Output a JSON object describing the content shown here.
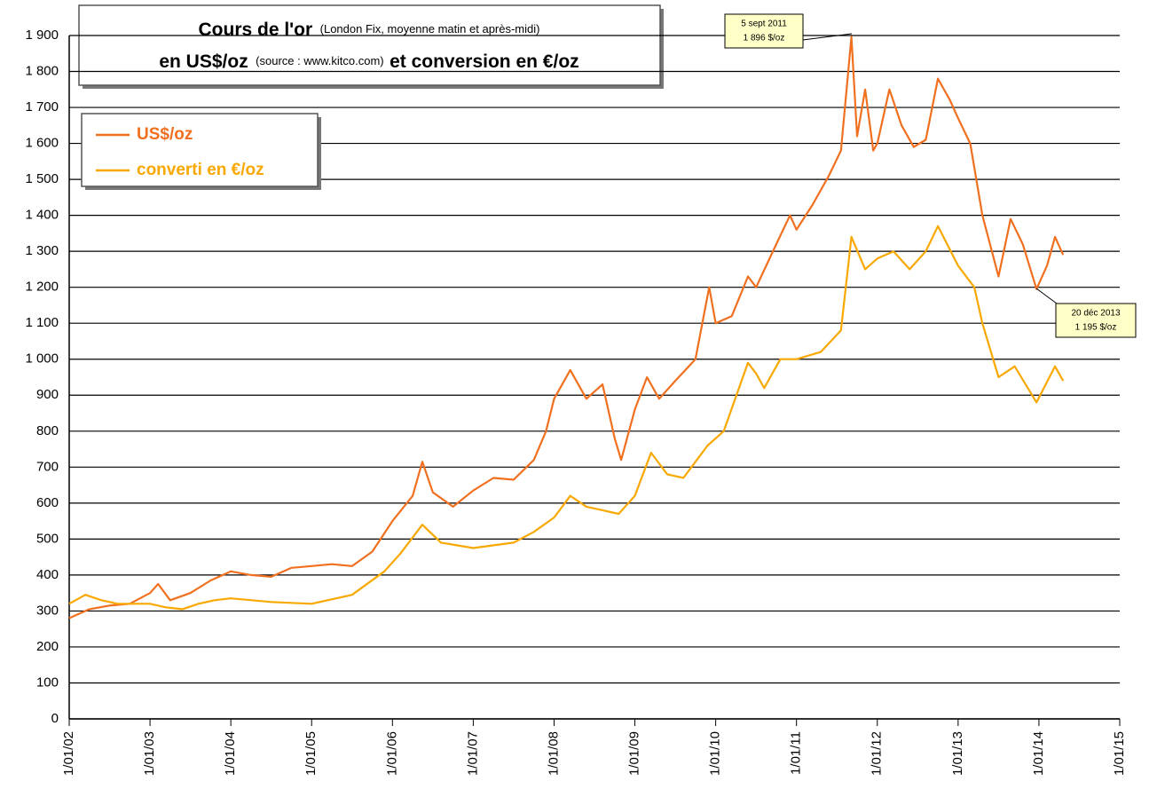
{
  "chart_data": {
    "type": "line",
    "title_main": "Cours de l'or",
    "title_note": "(London Fix, moyenne matin et après-midi)",
    "title_line2a": "en US$/oz",
    "title_source": "(source : www.kitco.com)",
    "title_line2b": "et conversion en €/oz",
    "annotations": [
      {
        "lines": [
          "5 sept 2011",
          "1 896 $/oz"
        ]
      },
      {
        "lines": [
          "20 déc 2013",
          "1 195 $/oz"
        ]
      }
    ],
    "xlim": [
      2002,
      2015
    ],
    "xticks": [
      {
        "value": 2002,
        "label": "1/01/02"
      },
      {
        "value": 2003,
        "label": "1/01/03"
      },
      {
        "value": 2004,
        "label": "1/01/04"
      },
      {
        "value": 2005,
        "label": "1/01/05"
      },
      {
        "value": 2006,
        "label": "1/01/06"
      },
      {
        "value": 2007,
        "label": "1/01/07"
      },
      {
        "value": 2008,
        "label": "1/01/08"
      },
      {
        "value": 2009,
        "label": "1/01/09"
      },
      {
        "value": 2010,
        "label": "1/01/10"
      },
      {
        "value": 2011,
        "label": "1/01/11"
      },
      {
        "value": 2012,
        "label": "1/01/12"
      },
      {
        "value": 2013,
        "label": "1/01/13"
      },
      {
        "value": 2014,
        "label": "1/01/14"
      },
      {
        "value": 2015,
        "label": "1/01/15"
      }
    ],
    "ylim": [
      0,
      1900
    ],
    "yticks": [
      0,
      100,
      200,
      300,
      400,
      500,
      600,
      700,
      800,
      900,
      {
        "value": 1000,
        "label": "1 000"
      },
      {
        "value": 1100,
        "label": "1 100"
      },
      {
        "value": 1200,
        "label": "1 200"
      },
      {
        "value": 1300,
        "label": "1 300"
      },
      {
        "value": 1400,
        "label": "1 400"
      },
      {
        "value": 1500,
        "label": "1 500"
      },
      {
        "value": 1600,
        "label": "1 600"
      },
      {
        "value": 1700,
        "label": "1 700"
      },
      {
        "value": 1800,
        "label": "1 800"
      },
      {
        "value": 1900,
        "label": "1 900"
      }
    ],
    "grid": true,
    "series": [
      {
        "name": "US$/oz",
        "color": "#f07020",
        "x": [
          2002.0,
          2002.25,
          2002.5,
          2002.75,
          2003.0,
          2003.1,
          2003.25,
          2003.5,
          2003.75,
          2004.0,
          2004.25,
          2004.5,
          2004.75,
          2005.0,
          2005.25,
          2005.5,
          2005.75,
          2006.0,
          2006.25,
          2006.37,
          2006.5,
          2006.75,
          2007.0,
          2007.25,
          2007.5,
          2007.75,
          2007.9,
          2008.0,
          2008.2,
          2008.4,
          2008.6,
          2008.75,
          2008.83,
          2009.0,
          2009.15,
          2009.3,
          2009.5,
          2009.75,
          2009.92,
          2010.0,
          2010.2,
          2010.4,
          2010.5,
          2010.75,
          2010.92,
          2011.0,
          2011.2,
          2011.4,
          2011.55,
          2011.68,
          2011.75,
          2011.85,
          2011.95,
          2012.0,
          2012.15,
          2012.3,
          2012.45,
          2012.6,
          2012.75,
          2012.9,
          2013.0,
          2013.15,
          2013.3,
          2013.5,
          2013.65,
          2013.8,
          2013.97,
          2014.1,
          2014.2,
          2014.3
        ],
        "values": [
          280,
          305,
          315,
          320,
          350,
          375,
          330,
          350,
          385,
          410,
          400,
          395,
          420,
          425,
          430,
          425,
          465,
          550,
          620,
          715,
          630,
          590,
          635,
          670,
          665,
          720,
          800,
          890,
          970,
          890,
          930,
          780,
          720,
          860,
          950,
          890,
          940,
          1000,
          1200,
          1100,
          1120,
          1230,
          1200,
          1320,
          1400,
          1360,
          1430,
          1510,
          1580,
          1896,
          1620,
          1750,
          1580,
          1600,
          1750,
          1650,
          1590,
          1610,
          1780,
          1720,
          1670,
          1600,
          1400,
          1230,
          1390,
          1320,
          1195,
          1260,
          1340,
          1290
        ]
      },
      {
        "name": "converti en €/oz",
        "color": "#f8a800",
        "x": [
          2002.0,
          2002.2,
          2002.4,
          2002.6,
          2003.0,
          2003.2,
          2003.4,
          2003.6,
          2003.8,
          2004.0,
          2004.5,
          2005.0,
          2005.5,
          2005.9,
          2006.1,
          2006.37,
          2006.6,
          2007.0,
          2007.5,
          2007.75,
          2008.0,
          2008.2,
          2008.4,
          2008.6,
          2008.8,
          2009.0,
          2009.2,
          2009.4,
          2009.6,
          2009.9,
          2010.1,
          2010.4,
          2010.5,
          2010.6,
          2010.8,
          2011.0,
          2011.3,
          2011.55,
          2011.68,
          2011.85,
          2012.0,
          2012.2,
          2012.4,
          2012.6,
          2012.75,
          2013.0,
          2013.2,
          2013.3,
          2013.5,
          2013.7,
          2013.97,
          2014.2,
          2014.3
        ],
        "values": [
          320,
          345,
          330,
          320,
          320,
          310,
          305,
          320,
          330,
          335,
          325,
          320,
          345,
          410,
          460,
          540,
          490,
          475,
          490,
          520,
          560,
          620,
          590,
          580,
          570,
          620,
          740,
          680,
          670,
          760,
          800,
          990,
          960,
          920,
          1000,
          1000,
          1020,
          1080,
          1340,
          1250,
          1280,
          1300,
          1250,
          1300,
          1370,
          1260,
          1200,
          1100,
          950,
          980,
          880,
          980,
          940
        ]
      }
    ]
  }
}
